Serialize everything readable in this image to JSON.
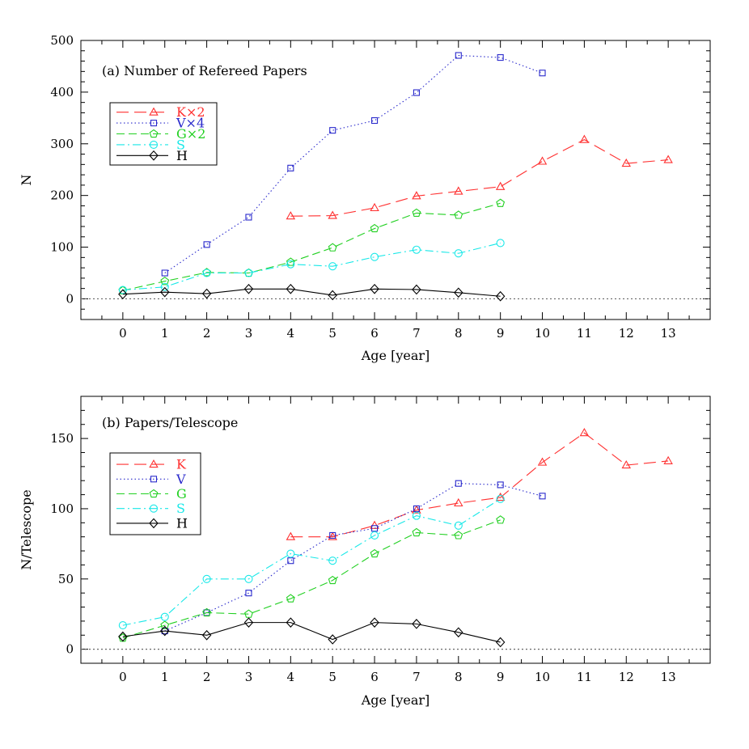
{
  "chart_data": [
    {
      "type": "line",
      "title": "(a) Number of Refereed Papers",
      "xlabel": "Age [year]",
      "ylabel": "N",
      "xlim": [
        -1,
        14
      ],
      "ylim": [
        -40,
        500
      ],
      "xticks": [
        0,
        1,
        2,
        3,
        4,
        5,
        6,
        7,
        8,
        9,
        10,
        11,
        12,
        13
      ],
      "yticks": [
        0,
        100,
        200,
        300,
        400,
        500
      ],
      "reference_line": 0,
      "legend_position": "upper-left",
      "series": [
        {
          "name": "K×2",
          "color": "#ff3030",
          "dash": "long-dash",
          "marker": "triangle",
          "x": [
            4,
            5,
            6,
            7,
            8,
            9,
            10,
            11,
            12,
            13
          ],
          "y": [
            160,
            161,
            176,
            199,
            208,
            217,
            266,
            308,
            262,
            269
          ]
        },
        {
          "name": "V×4",
          "color": "#2a2acc",
          "dash": "dotted",
          "marker": "square",
          "x": [
            1,
            2,
            3,
            4,
            5,
            6,
            7,
            8,
            9,
            10
          ],
          "y": [
            50,
            105,
            158,
            253,
            326,
            345,
            399,
            471,
            467,
            437
          ]
        },
        {
          "name": "G×2",
          "color": "#22d022",
          "dash": "dashed",
          "marker": "pentagon",
          "x": [
            0,
            1,
            2,
            3,
            4,
            5,
            6,
            7,
            8,
            9
          ],
          "y": [
            16,
            34,
            51,
            50,
            71,
            99,
            136,
            166,
            162,
            185
          ]
        },
        {
          "name": "S",
          "color": "#18e8e8",
          "dash": "dash-dot",
          "marker": "circle",
          "x": [
            0,
            1,
            2,
            3,
            4,
            5,
            6,
            7,
            8,
            9
          ],
          "y": [
            17,
            23,
            50,
            50,
            67,
            63,
            81,
            95,
            88,
            108
          ]
        },
        {
          "name": "H",
          "color": "#000000",
          "dash": "solid",
          "marker": "diamond",
          "x": [
            0,
            1,
            2,
            3,
            4,
            5,
            6,
            7,
            8,
            9
          ],
          "y": [
            9,
            13,
            10,
            19,
            19,
            7,
            19,
            18,
            12,
            5
          ]
        }
      ]
    },
    {
      "type": "line",
      "title": "(b) Papers/Telescope",
      "xlabel": "Age [year]",
      "ylabel": "N/Telescope",
      "xlim": [
        -1,
        14
      ],
      "ylim": [
        -10,
        180
      ],
      "xticks": [
        0,
        1,
        2,
        3,
        4,
        5,
        6,
        7,
        8,
        9,
        10,
        11,
        12,
        13
      ],
      "yticks": [
        0,
        50,
        100,
        150
      ],
      "reference_line": 0,
      "legend_position": "upper-left",
      "series": [
        {
          "name": "K",
          "color": "#ff3030",
          "dash": "long-dash",
          "marker": "triangle",
          "x": [
            4,
            5,
            6,
            7,
            8,
            9,
            10,
            11,
            12,
            13
          ],
          "y": [
            80,
            80,
            88,
            99,
            104,
            108,
            133,
            154,
            131,
            134
          ]
        },
        {
          "name": "V",
          "color": "#2a2acc",
          "dash": "dotted",
          "marker": "square",
          "x": [
            1,
            2,
            3,
            4,
            5,
            6,
            7,
            8,
            9,
            10
          ],
          "y": [
            13,
            26,
            40,
            63,
            81,
            86,
            100,
            118,
            117,
            109
          ]
        },
        {
          "name": "G",
          "color": "#22d022",
          "dash": "dashed",
          "marker": "pentagon",
          "x": [
            0,
            1,
            2,
            3,
            4,
            5,
            6,
            7,
            8,
            9
          ],
          "y": [
            8,
            17,
            26,
            25,
            36,
            49,
            68,
            83,
            81,
            92
          ]
        },
        {
          "name": "S",
          "color": "#18e8e8",
          "dash": "dash-dot",
          "marker": "circle",
          "x": [
            0,
            1,
            2,
            3,
            4,
            5,
            6,
            7,
            8,
            9
          ],
          "y": [
            17,
            23,
            50,
            50,
            68,
            63,
            81,
            95,
            88,
            107
          ]
        },
        {
          "name": "H",
          "color": "#000000",
          "dash": "solid",
          "marker": "diamond",
          "x": [
            0,
            1,
            2,
            3,
            4,
            5,
            6,
            7,
            8,
            9
          ],
          "y": [
            9,
            13,
            10,
            19,
            19,
            7,
            19,
            18,
            12,
            5
          ]
        }
      ]
    }
  ]
}
